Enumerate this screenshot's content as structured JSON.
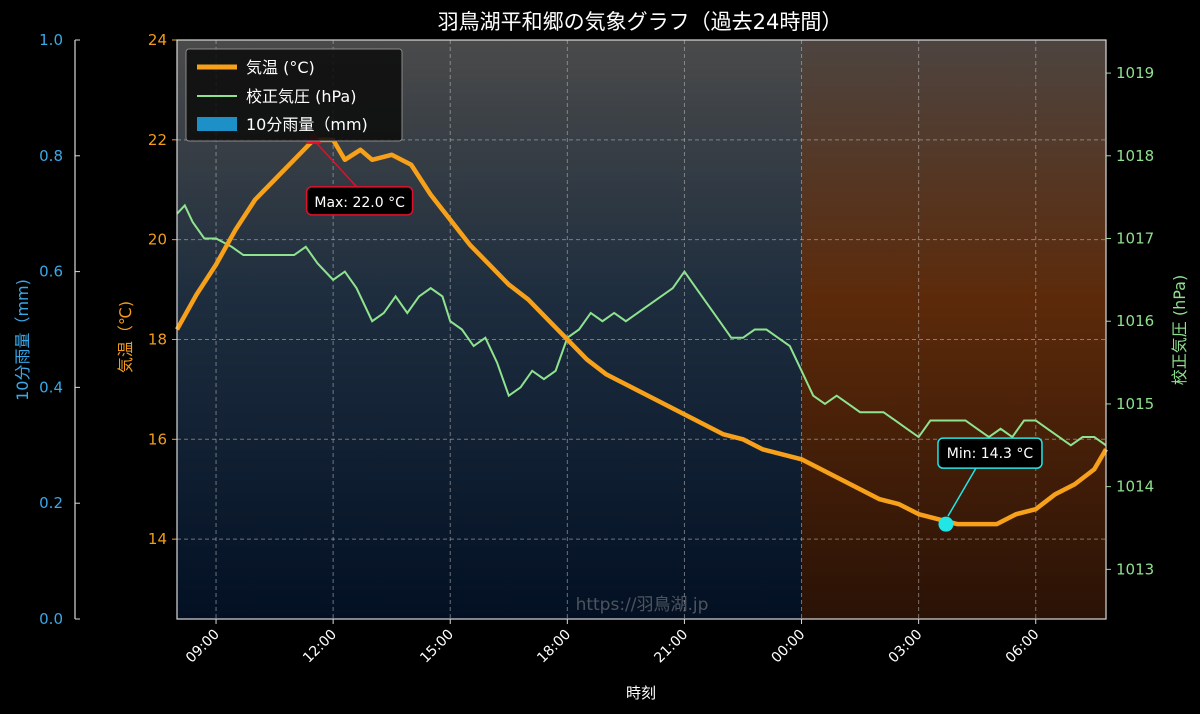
{
  "chart_data": {
    "type": "line",
    "title": "羽鳥湖平和郷の気象グラフ（過去24時間）",
    "xlabel": "時刻",
    "x_ticks": [
      "09:00",
      "12:00",
      "15:00",
      "18:00",
      "21:00",
      "00:00",
      "03:00",
      "06:00"
    ],
    "x_range_hours": [
      8.0,
      31.8
    ],
    "night_start_hour": 24,
    "grid": true,
    "watermark": "https://羽鳥湖.jp",
    "legend_position": "upper-left",
    "legend": {
      "temp": "気温 (°C)",
      "pressure": "校正気圧 (hPa)",
      "rain": "10分雨量（mm)"
    },
    "axes": {
      "rain": {
        "label": "10分雨量（mm)",
        "range": [
          0,
          1.0
        ],
        "ticks": [
          "0.0",
          "0.2",
          "0.4",
          "0.6",
          "0.8",
          "1.0"
        ],
        "tick_values": [
          0,
          0.2,
          0.4,
          0.6,
          0.8,
          1.0
        ],
        "color": "#3aa8e6"
      },
      "temp": {
        "label": "気温（℃)",
        "range": [
          12.4,
          24
        ],
        "ticks": [
          "14",
          "16",
          "18",
          "20",
          "22",
          "24"
        ],
        "tick_values": [
          14,
          16,
          18,
          20,
          22,
          24
        ],
        "color": "#f39c1c"
      },
      "pressure": {
        "label": "校正気圧 (hPa)",
        "range": [
          1012.4,
          1019.4
        ],
        "ticks": [
          "1013",
          "1014",
          "1015",
          "1016",
          "1017",
          "1018",
          "1019"
        ],
        "tick_values": [
          1013,
          1014,
          1015,
          1016,
          1017,
          1018,
          1019
        ],
        "color": "#8fe08f"
      }
    },
    "colors": {
      "temp": "#f7a11a",
      "pressure": "#8fe38f",
      "rain": "#1e90c8",
      "max": "#e0102a",
      "min": "#22e6e6"
    },
    "series": [
      {
        "name": "気温 (°C)",
        "axis": "temp",
        "points": [
          [
            8.0,
            18.2
          ],
          [
            8.5,
            18.9
          ],
          [
            9.0,
            19.5
          ],
          [
            9.5,
            20.2
          ],
          [
            10.0,
            20.8
          ],
          [
            10.5,
            21.2
          ],
          [
            11.0,
            21.6
          ],
          [
            11.5,
            22.0
          ],
          [
            12.0,
            22.0
          ],
          [
            12.3,
            21.6
          ],
          [
            12.7,
            21.8
          ],
          [
            13.0,
            21.6
          ],
          [
            13.5,
            21.7
          ],
          [
            14.0,
            21.5
          ],
          [
            14.5,
            20.9
          ],
          [
            15.0,
            20.4
          ],
          [
            15.5,
            19.9
          ],
          [
            16.0,
            19.5
          ],
          [
            16.5,
            19.1
          ],
          [
            17.0,
            18.8
          ],
          [
            17.5,
            18.4
          ],
          [
            18.0,
            18.0
          ],
          [
            18.5,
            17.6
          ],
          [
            19.0,
            17.3
          ],
          [
            19.5,
            17.1
          ],
          [
            20.0,
            16.9
          ],
          [
            20.5,
            16.7
          ],
          [
            21.0,
            16.5
          ],
          [
            21.5,
            16.3
          ],
          [
            22.0,
            16.1
          ],
          [
            22.5,
            16.0
          ],
          [
            23.0,
            15.8
          ],
          [
            23.5,
            15.7
          ],
          [
            24.0,
            15.6
          ],
          [
            24.5,
            15.4
          ],
          [
            25.0,
            15.2
          ],
          [
            25.5,
            15.0
          ],
          [
            26.0,
            14.8
          ],
          [
            26.5,
            14.7
          ],
          [
            27.0,
            14.5
          ],
          [
            27.5,
            14.4
          ],
          [
            28.0,
            14.3
          ],
          [
            29.0,
            14.3
          ],
          [
            29.5,
            14.5
          ],
          [
            30.0,
            14.6
          ],
          [
            30.5,
            14.9
          ],
          [
            31.0,
            15.1
          ],
          [
            31.5,
            15.4
          ],
          [
            31.8,
            15.8
          ]
        ]
      },
      {
        "name": "校正気圧 (hPa)",
        "axis": "pressure",
        "points": [
          [
            8.0,
            1017.3
          ],
          [
            8.2,
            1017.4
          ],
          [
            8.4,
            1017.2
          ],
          [
            8.7,
            1017.0
          ],
          [
            9.0,
            1017.0
          ],
          [
            9.4,
            1016.9
          ],
          [
            9.7,
            1016.8
          ],
          [
            10.0,
            1016.8
          ],
          [
            10.5,
            1016.8
          ],
          [
            11.0,
            1016.8
          ],
          [
            11.3,
            1016.9
          ],
          [
            11.6,
            1016.7
          ],
          [
            12.0,
            1016.5
          ],
          [
            12.3,
            1016.6
          ],
          [
            12.6,
            1016.4
          ],
          [
            13.0,
            1016.0
          ],
          [
            13.3,
            1016.1
          ],
          [
            13.6,
            1016.3
          ],
          [
            13.9,
            1016.1
          ],
          [
            14.2,
            1016.3
          ],
          [
            14.5,
            1016.4
          ],
          [
            14.8,
            1016.3
          ],
          [
            15.0,
            1016.0
          ],
          [
            15.3,
            1015.9
          ],
          [
            15.6,
            1015.7
          ],
          [
            15.9,
            1015.8
          ],
          [
            16.2,
            1015.5
          ],
          [
            16.5,
            1015.1
          ],
          [
            16.8,
            1015.2
          ],
          [
            17.1,
            1015.4
          ],
          [
            17.4,
            1015.3
          ],
          [
            17.7,
            1015.4
          ],
          [
            18.0,
            1015.8
          ],
          [
            18.3,
            1015.9
          ],
          [
            18.6,
            1016.1
          ],
          [
            18.9,
            1016.0
          ],
          [
            19.2,
            1016.1
          ],
          [
            19.5,
            1016.0
          ],
          [
            19.8,
            1016.1
          ],
          [
            20.1,
            1016.2
          ],
          [
            20.4,
            1016.3
          ],
          [
            20.7,
            1016.4
          ],
          [
            21.0,
            1016.6
          ],
          [
            21.3,
            1016.4
          ],
          [
            21.6,
            1016.2
          ],
          [
            21.9,
            1016.0
          ],
          [
            22.2,
            1015.8
          ],
          [
            22.5,
            1015.8
          ],
          [
            22.8,
            1015.9
          ],
          [
            23.1,
            1015.9
          ],
          [
            23.4,
            1015.8
          ],
          [
            23.7,
            1015.7
          ],
          [
            24.0,
            1015.4
          ],
          [
            24.3,
            1015.1
          ],
          [
            24.6,
            1015.0
          ],
          [
            24.9,
            1015.1
          ],
          [
            25.2,
            1015.0
          ],
          [
            25.5,
            1014.9
          ],
          [
            25.8,
            1014.9
          ],
          [
            26.1,
            1014.9
          ],
          [
            26.4,
            1014.8
          ],
          [
            26.7,
            1014.7
          ],
          [
            27.0,
            1014.6
          ],
          [
            27.3,
            1014.8
          ],
          [
            27.6,
            1014.8
          ],
          [
            27.9,
            1014.8
          ],
          [
            28.2,
            1014.8
          ],
          [
            28.5,
            1014.7
          ],
          [
            28.8,
            1014.6
          ],
          [
            29.1,
            1014.7
          ],
          [
            29.4,
            1014.6
          ],
          [
            29.7,
            1014.8
          ],
          [
            30.0,
            1014.8
          ],
          [
            30.3,
            1014.7
          ],
          [
            30.6,
            1014.6
          ],
          [
            30.9,
            1014.5
          ],
          [
            31.2,
            1014.6
          ],
          [
            31.5,
            1014.6
          ],
          [
            31.8,
            1014.5
          ]
        ]
      },
      {
        "name": "10分雨量（mm)",
        "axis": "rain",
        "points": []
      }
    ],
    "annotations": {
      "max": {
        "label": "Max: 22.0 °C",
        "x": 11.5,
        "y": 22.0
      },
      "min": {
        "label": "Min: 14.3 °C",
        "x": 27.7,
        "y": 14.3
      }
    }
  }
}
